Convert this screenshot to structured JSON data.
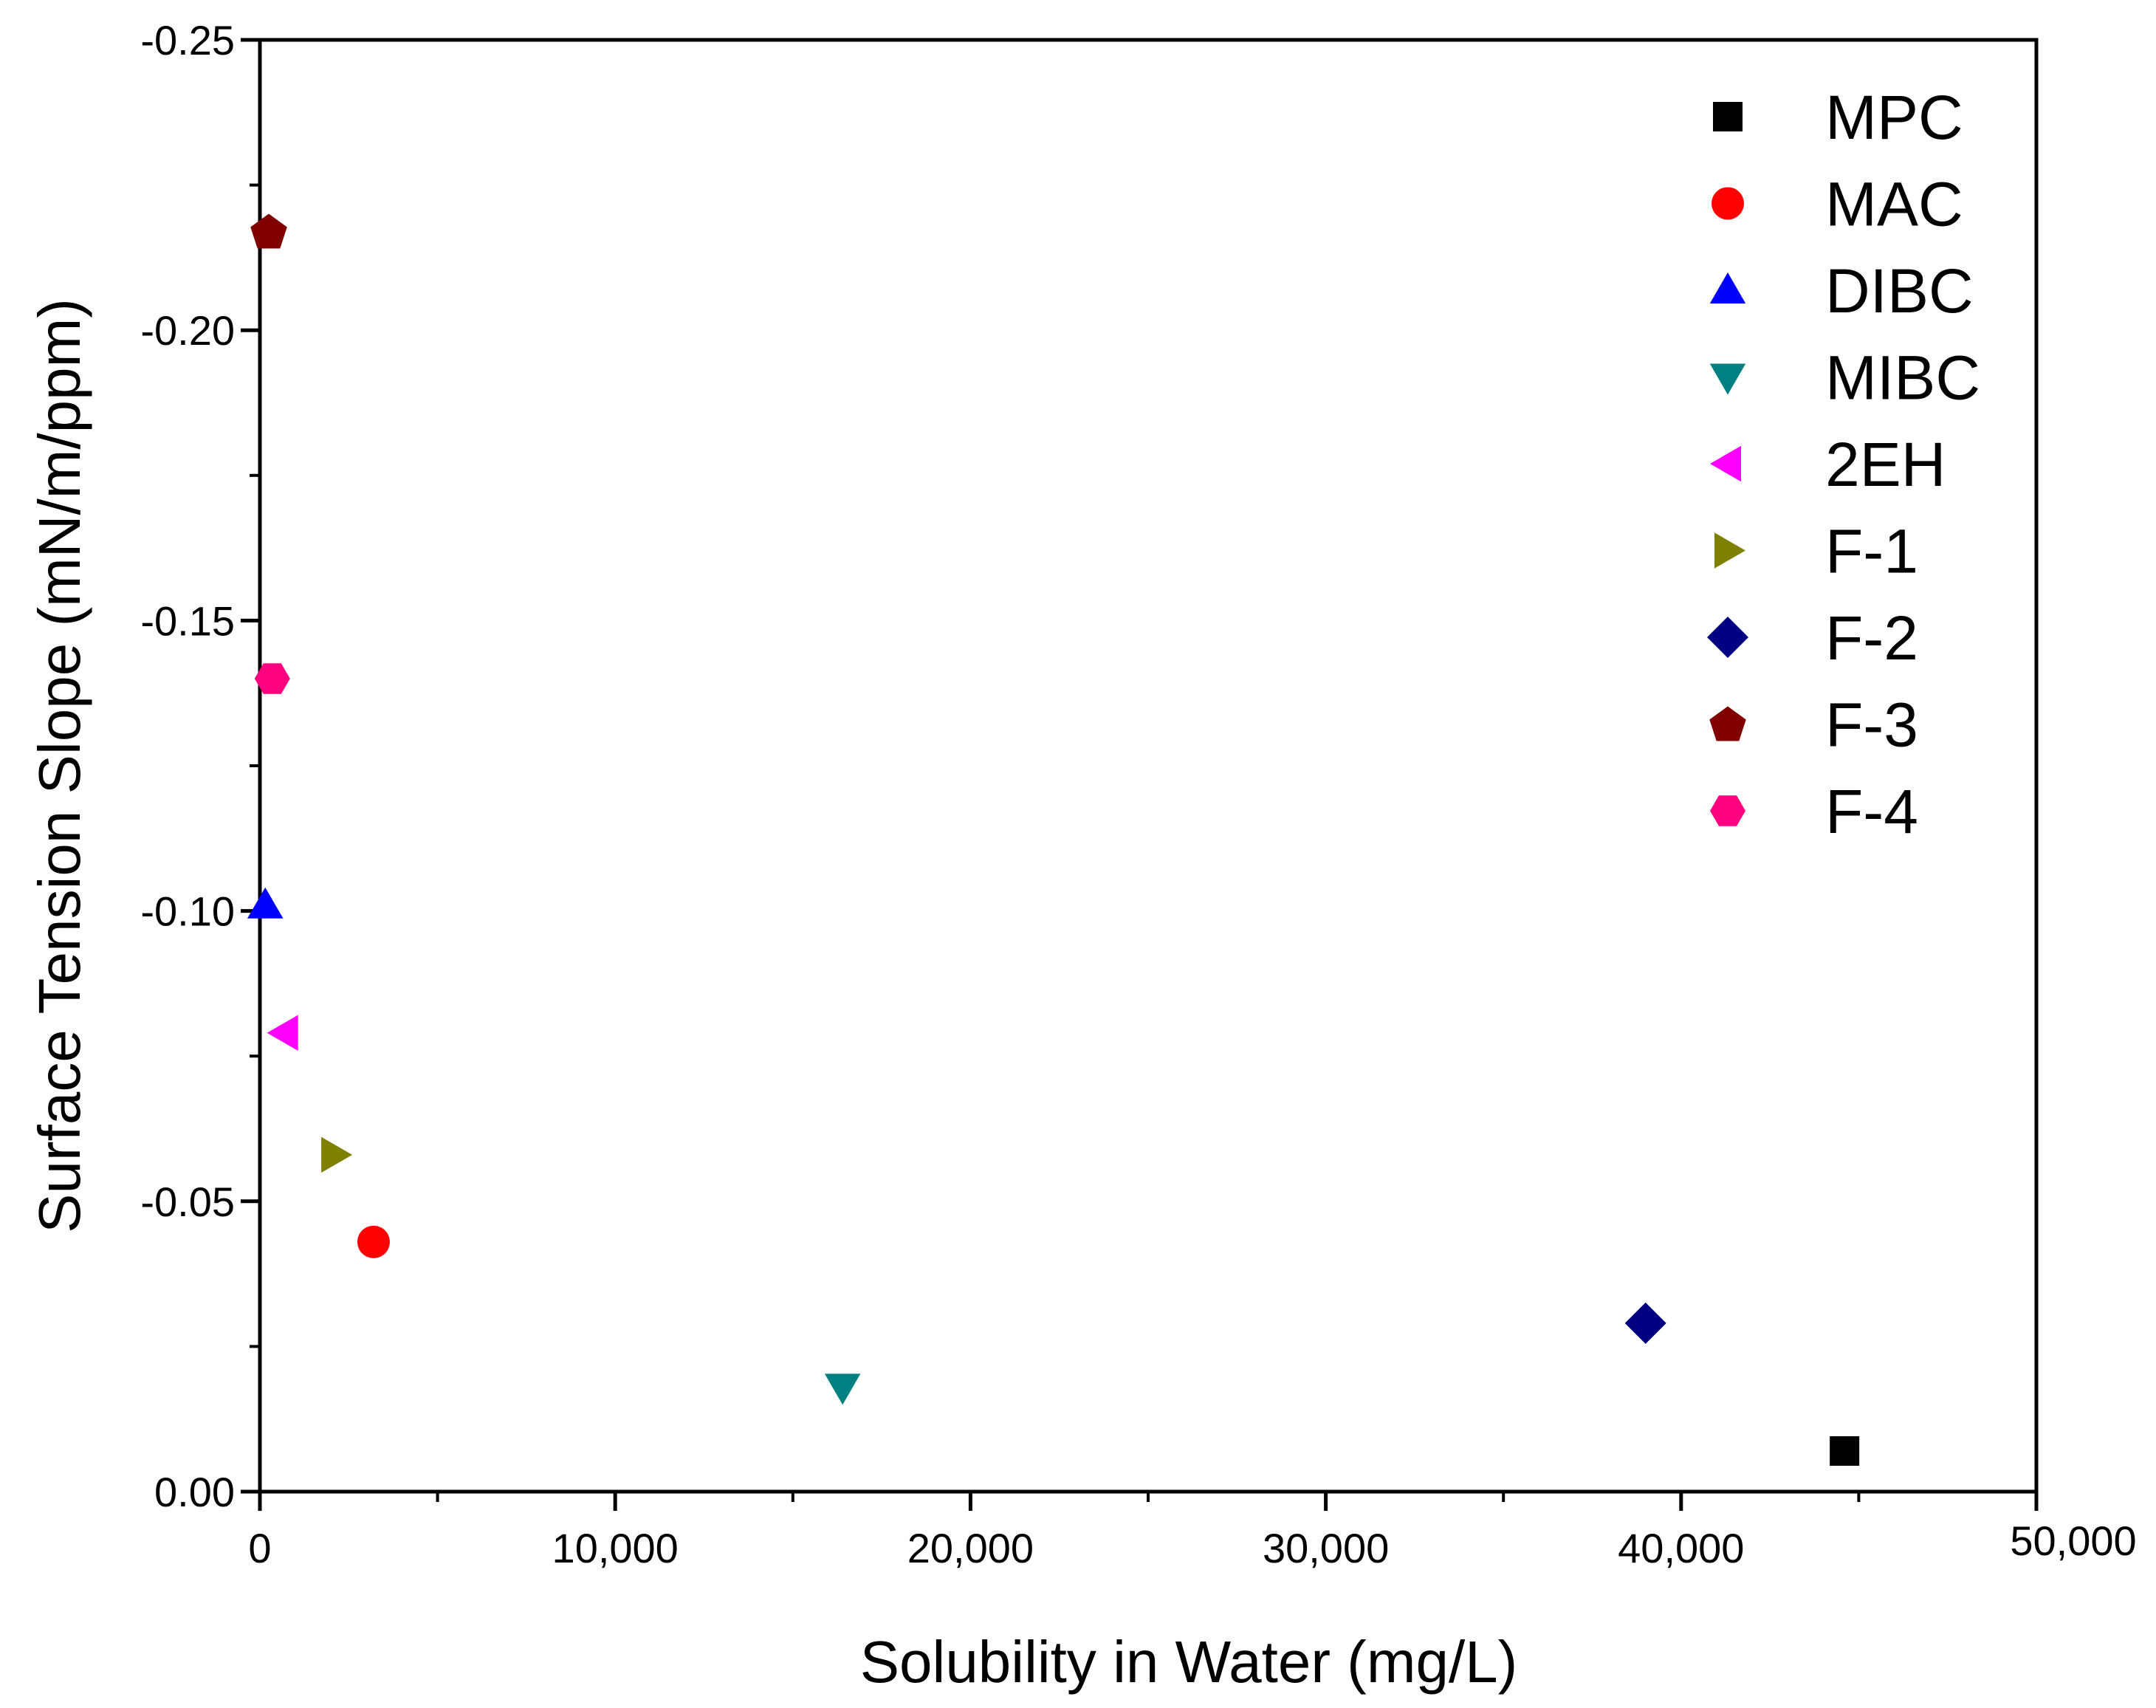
{
  "chart_data": {
    "type": "scatter",
    "title": "",
    "xlabel": "Solubility in Water (mg/L)",
    "ylabel": "Surface Tension Slope (mN/m/ppm)",
    "xlim": [
      0,
      50000
    ],
    "ylim": [
      0,
      -0.25
    ],
    "x_ticks": [
      0,
      10000,
      20000,
      30000,
      40000,
      50000
    ],
    "x_tick_labels": [
      "0",
      "10,000",
      "20,000",
      "30,000",
      "40,000",
      "50,000"
    ],
    "y_ticks": [
      0,
      -0.05,
      -0.1,
      -0.15,
      -0.2,
      -0.25
    ],
    "y_tick_labels": [
      "0.00",
      "-0.05",
      "-0.10",
      "-0.15",
      "-0.20",
      "-0.25"
    ],
    "grid": false,
    "legend_position": "top-right",
    "series": [
      {
        "name": "MPC",
        "marker": "square",
        "color": "#000000",
        "x": 44600,
        "y": -0.007
      },
      {
        "name": "MAC",
        "marker": "circle",
        "color": "#FF0000",
        "x": 3200,
        "y": -0.043
      },
      {
        "name": "DIBC",
        "marker": "triangle-up",
        "color": "#0000FF",
        "x": 150,
        "y": -0.101
      },
      {
        "name": "MIBC",
        "marker": "triangle-down",
        "color": "#008080",
        "x": 16400,
        "y": -0.018
      },
      {
        "name": "2EH",
        "marker": "triangle-left",
        "color": "#FF00FF",
        "x": 700,
        "y": -0.079
      },
      {
        "name": "F-1",
        "marker": "triangle-right",
        "color": "#808000",
        "x": 2100,
        "y": -0.058
      },
      {
        "name": "F-2",
        "marker": "diamond",
        "color": "#000080",
        "x": 39000,
        "y": -0.029
      },
      {
        "name": "F-3",
        "marker": "pentagon",
        "color": "#800000",
        "x": 250,
        "y": -0.217
      },
      {
        "name": "F-4",
        "marker": "hexagon",
        "color": "#FF0080",
        "x": 350,
        "y": -0.14
      }
    ]
  }
}
